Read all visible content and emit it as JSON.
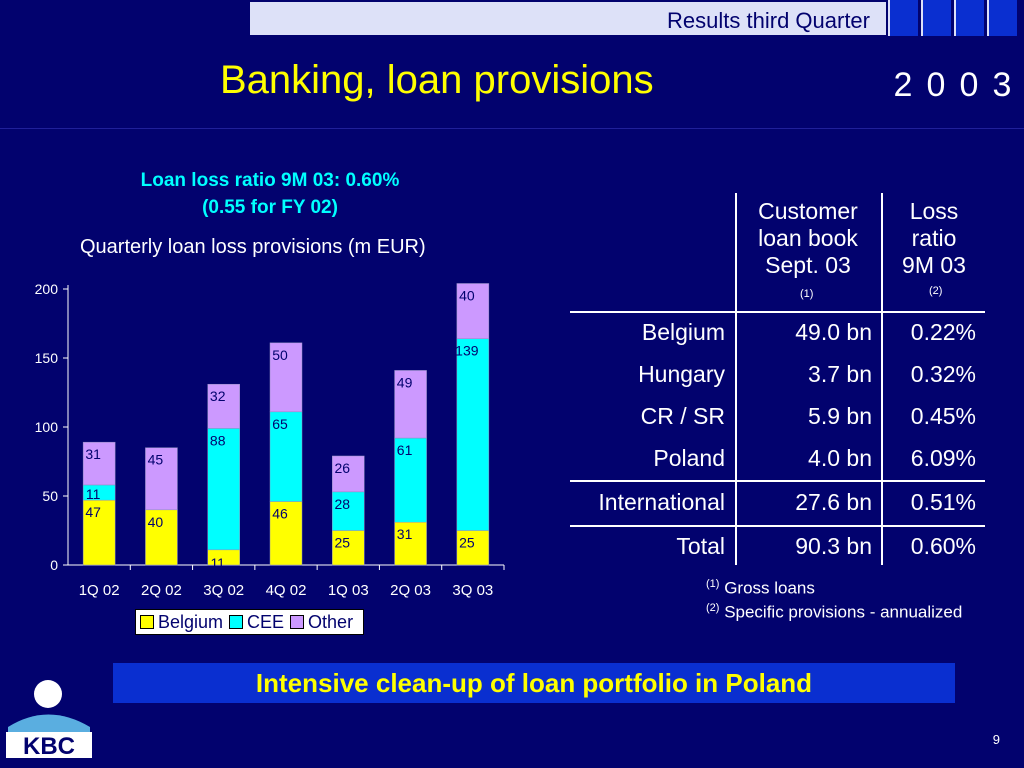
{
  "header": {
    "text": "Results third Quarter",
    "year_digits": [
      "2",
      "0",
      "0",
      "3"
    ]
  },
  "title": "Banking, loan provisions",
  "highlight": {
    "line1": "Loan loss ratio 9M 03: 0.60%",
    "line2": "(0.55 for FY 02)"
  },
  "colors": {
    "background": "#02026e",
    "title": "#ffff00",
    "highlight": "#00ffff",
    "belgium": "#ffff00",
    "cee": "#00ffff",
    "other": "#cc99ff"
  },
  "chart_data": {
    "type": "bar",
    "stacked": true,
    "title": "Quarterly loan loss provisions (m EUR)",
    "categories": [
      "1Q 02",
      "2Q 02",
      "3Q 02",
      "4Q 02",
      "1Q 03",
      "2Q 03",
      "3Q 03"
    ],
    "series": [
      {
        "name": "Belgium",
        "values": [
          47,
          40,
          11,
          46,
          25,
          31,
          25
        ]
      },
      {
        "name": "CEE",
        "values": [
          11,
          null,
          88,
          65,
          28,
          61,
          139
        ]
      },
      {
        "name": "Other",
        "values": [
          31,
          45,
          32,
          50,
          26,
          49,
          40
        ]
      }
    ],
    "ylim": [
      0,
      200
    ],
    "yticks": [
      "0",
      "50",
      "100",
      "150",
      "200"
    ],
    "legend": [
      "Belgium",
      "CEE",
      "Other"
    ],
    "legend_position": "bottom"
  },
  "table": {
    "headers": {
      "book": [
        "Customer",
        "loan book",
        "Sept. 03"
      ],
      "ratio": [
        "Loss",
        "ratio",
        "9M 03"
      ],
      "book_note": "(1)",
      "ratio_note": "(2)"
    },
    "rows": [
      {
        "label": "Belgium",
        "book": "49.0 bn",
        "ratio": "0.22%"
      },
      {
        "label": "Hungary",
        "book": "3.7 bn",
        "ratio": "0.32%"
      },
      {
        "label": "CR / SR",
        "book": "5.9 bn",
        "ratio": "0.45%"
      },
      {
        "label": "Poland",
        "book": "4.0 bn",
        "ratio": "6.09%"
      },
      {
        "label": "International",
        "book": "27.6 bn",
        "ratio": "0.51%"
      },
      {
        "label": "Total",
        "book": "90.3 bn",
        "ratio": "0.60%"
      }
    ]
  },
  "footnotes": [
    {
      "mark": "(1)",
      "text": "Gross loans"
    },
    {
      "mark": "(2)",
      "text": "Specific provisions - annualized"
    }
  ],
  "banner": "Intensive clean-up of loan portfolio in Poland",
  "page_number": "9",
  "logo_text": "KBC"
}
